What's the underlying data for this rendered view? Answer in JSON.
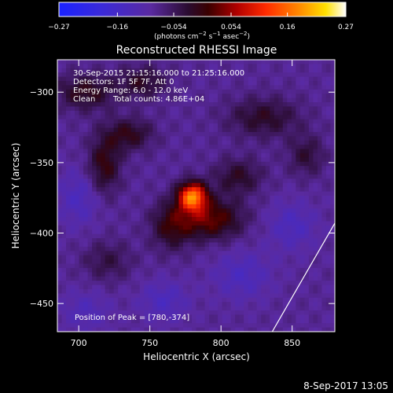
{
  "chart_data": {
    "type": "heatmap",
    "title": "Reconstructed RHESSI Image",
    "xlabel": "Heliocentric X (arcsec)",
    "ylabel": "Heliocentric Y (arcsec)",
    "xlim": [
      685,
      880
    ],
    "ylim": [
      -470,
      -277
    ],
    "xticks": [
      700,
      750,
      800,
      850
    ],
    "yticks": [
      -300,
      -350,
      -400,
      -450
    ],
    "colorbar": {
      "label_prefix": "(photons cm",
      "label_sup1": "−2",
      "label_mid": " s",
      "label_sup2": "−1",
      "label_mid2": " asec",
      "label_sup3": "−2",
      "label_suffix": ")",
      "range": [
        -0.27,
        0.27
      ],
      "ticks": [
        "−0.27",
        "−0.16",
        "−0.054",
        "0.054",
        "0.16",
        "0.27"
      ],
      "tick_values": [
        -0.27,
        -0.16,
        -0.054,
        0.054,
        0.16,
        0.27
      ]
    },
    "annotations": {
      "time_range": "30-Sep-2015 21:15:16.000 to 21:25:16.000",
      "detectors": "Detectors: 1F 5F 7F, Att 0",
      "energy": "Energy Range: 6.0 - 12.0 keV",
      "method": "Clean",
      "counts": "Total counts: 4.86E+04",
      "peak": "Position of Peak = [780,-374]"
    },
    "peak": {
      "x": 780,
      "y": -374,
      "value": 0.27
    },
    "components": [
      {
        "x": 780,
        "y": -374,
        "sx": 7,
        "sy": 7,
        "amp": 0.25
      },
      {
        "x": 792,
        "y": -390,
        "sx": 16,
        "sy": 10,
        "amp": 0.12
      },
      {
        "x": 765,
        "y": -395,
        "sx": 10,
        "sy": 12,
        "amp": 0.08
      },
      {
        "x": 812,
        "y": -360,
        "sx": 12,
        "sy": 9,
        "amp": 0.07
      },
      {
        "x": 718,
        "y": -352,
        "sx": 8,
        "sy": 14,
        "amp": 0.09
      },
      {
        "x": 735,
        "y": -330,
        "sx": 12,
        "sy": 8,
        "amp": 0.08
      },
      {
        "x": 705,
        "y": -300,
        "sx": 15,
        "sy": 9,
        "amp": 0.08
      },
      {
        "x": 745,
        "y": -293,
        "sx": 12,
        "sy": 8,
        "amp": 0.07
      },
      {
        "x": 830,
        "y": -318,
        "sx": 18,
        "sy": 10,
        "amp": 0.07
      },
      {
        "x": 860,
        "y": -345,
        "sx": 9,
        "sy": 10,
        "amp": 0.06
      },
      {
        "x": 720,
        "y": -420,
        "sx": 12,
        "sy": 10,
        "amp": 0.05
      },
      {
        "x": 760,
        "y": -448,
        "sx": 12,
        "sy": 10,
        "amp": -0.05
      },
      {
        "x": 705,
        "y": -455,
        "sx": 12,
        "sy": 10,
        "amp": -0.04
      },
      {
        "x": 815,
        "y": -430,
        "sx": 14,
        "sy": 12,
        "amp": -0.05
      },
      {
        "x": 850,
        "y": -395,
        "sx": 12,
        "sy": 12,
        "amp": -0.05
      },
      {
        "x": 700,
        "y": -375,
        "sx": 10,
        "sy": 14,
        "amp": -0.05
      }
    ],
    "limb_line": [
      [
        836,
        -470
      ],
      [
        880,
        -393
      ]
    ]
  },
  "footer": {
    "date": "8-Sep-2017 13:05"
  }
}
